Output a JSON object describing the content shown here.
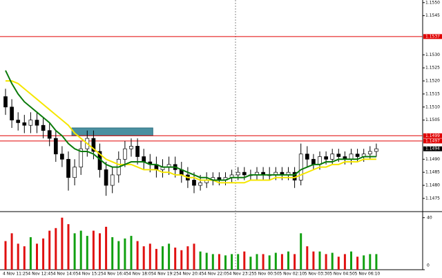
{
  "chart_data": {
    "type": "candlestick",
    "categories": [
      "4 Nov 11:25",
      null,
      null,
      null,
      "4 Nov 12:45",
      null,
      null,
      null,
      "4 Nov 14:05",
      null,
      null,
      null,
      "4 Nov 15:25",
      null,
      null,
      null,
      "4 Nov 16:45",
      null,
      null,
      null,
      "4 Nov 18:05",
      null,
      null,
      null,
      "4 Nov 19:25",
      null,
      null,
      null,
      "4 Nov 20:45",
      null,
      null,
      null,
      "4 Nov 22:05",
      null,
      null,
      null,
      "4 Nov 23:25",
      null,
      null,
      null,
      "5 Nov 00:50",
      null,
      null,
      null,
      "5 Nov 02:10",
      null,
      null,
      null,
      "5 Nov 03:30",
      null,
      null,
      null,
      "5 Nov 04:50",
      null,
      null,
      null,
      "5 Nov 06:10",
      null,
      null,
      null
    ],
    "open": [
      1.1514,
      1.151,
      1.1505,
      1.1504,
      1.1503,
      1.1505,
      1.1503,
      1.1501,
      1.1498,
      1.1492,
      1.149,
      1.1483,
      1.1487,
      1.1494,
      1.1498,
      1.1493,
      1.1486,
      1.148,
      1.1484,
      1.149,
      1.1494,
      1.1495,
      1.1491,
      1.1489,
      1.1488,
      1.1486,
      1.1487,
      1.1488,
      1.1486,
      1.1484,
      1.1482,
      1.148,
      1.1481,
      1.1482,
      1.1483,
      1.1482,
      1.1483,
      1.1484,
      1.1485,
      1.1484,
      1.1484,
      1.1485,
      1.1484,
      1.1484,
      1.1485,
      1.1484,
      1.1485,
      1.1482,
      1.1492,
      1.149,
      1.1488,
      1.1491,
      1.149,
      1.1492,
      1.1491,
      1.149,
      1.1492,
      1.1491,
      1.1492,
      1.1493
    ],
    "high": [
      1.1517,
      1.1513,
      1.1508,
      1.1507,
      1.1508,
      1.1508,
      1.1506,
      1.1504,
      1.1501,
      1.1495,
      1.1493,
      1.149,
      1.1497,
      1.1501,
      1.1501,
      1.1496,
      1.1489,
      1.1487,
      1.1493,
      1.1497,
      1.1498,
      1.1498,
      1.1494,
      1.1492,
      1.1491,
      1.149,
      1.1491,
      1.1491,
      1.1489,
      1.1487,
      1.1485,
      1.1484,
      1.1485,
      1.1485,
      1.1485,
      1.1485,
      1.1486,
      1.1487,
      1.1487,
      1.1486,
      1.1487,
      1.1487,
      1.1487,
      1.1487,
      1.1487,
      1.1487,
      1.1487,
      1.1496,
      1.1495,
      1.1492,
      1.1493,
      1.1493,
      1.1494,
      1.1494,
      1.1493,
      1.1494,
      1.1494,
      1.1494,
      1.1495,
      1.1496
    ],
    "low": [
      1.1507,
      1.1502,
      1.1501,
      1.15,
      1.15,
      1.15,
      1.1498,
      1.1495,
      1.1489,
      1.1487,
      1.1478,
      1.148,
      1.1484,
      1.1491,
      1.149,
      1.1483,
      1.1476,
      1.1477,
      1.1481,
      1.1487,
      1.1491,
      1.1488,
      1.1486,
      1.1485,
      1.1483,
      1.1483,
      1.1484,
      1.1483,
      1.1481,
      1.1479,
      1.1477,
      1.1478,
      1.1479,
      1.148,
      1.148,
      1.148,
      1.1481,
      1.1482,
      1.1482,
      1.1482,
      1.1482,
      1.1482,
      1.1482,
      1.1482,
      1.1482,
      1.1482,
      1.1479,
      1.148,
      1.1487,
      1.1486,
      1.1486,
      1.1488,
      1.1488,
      1.1489,
      1.1488,
      1.1488,
      1.1489,
      1.1489,
      1.149,
      1.1491
    ],
    "close": [
      1.151,
      1.1505,
      1.1504,
      1.1503,
      1.1505,
      1.1503,
      1.1501,
      1.1498,
      1.1492,
      1.149,
      1.1483,
      1.1487,
      1.1494,
      1.1498,
      1.1493,
      1.1486,
      1.148,
      1.1484,
      1.149,
      1.1494,
      1.1495,
      1.1491,
      1.1489,
      1.1488,
      1.1486,
      1.1487,
      1.1488,
      1.1486,
      1.1484,
      1.1482,
      1.148,
      1.1481,
      1.1482,
      1.1483,
      1.1482,
      1.1483,
      1.1484,
      1.1485,
      1.1484,
      1.1484,
      1.1485,
      1.1484,
      1.1484,
      1.1485,
      1.1484,
      1.1485,
      1.1482,
      1.1492,
      1.149,
      1.1488,
      1.1491,
      1.149,
      1.1492,
      1.1491,
      1.149,
      1.1492,
      1.1491,
      1.1492,
      1.1493,
      1.1494
    ],
    "series": [
      {
        "color": "#f5e600",
        "values": [
          1.152,
          1.152,
          1.1519,
          1.1517,
          1.1515,
          1.1513,
          1.1511,
          1.1509,
          1.1507,
          1.1505,
          1.1503,
          1.15,
          1.1498,
          1.1496,
          1.1494,
          1.1492,
          1.149,
          1.1489,
          1.1488,
          1.1488,
          1.1488,
          1.1487,
          1.1486,
          1.1486,
          1.1486,
          1.1485,
          1.1485,
          1.1484,
          1.1484,
          1.1483,
          1.1483,
          1.1482,
          1.1482,
          1.1482,
          1.1481,
          1.1481,
          1.1481,
          1.1481,
          1.1481,
          1.1482,
          1.1482,
          1.1482,
          1.1482,
          1.1483,
          1.1483,
          1.1483,
          1.1483,
          1.1484,
          1.1485,
          1.1486,
          1.1487,
          1.1487,
          1.1488,
          1.1488,
          1.1489,
          1.1489,
          1.1489,
          1.149,
          1.149,
          1.149
        ]
      },
      {
        "color": "#0a7a0a",
        "values": [
          1.1524,
          1.1519,
          1.1515,
          1.1512,
          1.151,
          1.1508,
          1.1506,
          1.1504,
          1.1501,
          1.1499,
          1.1496,
          1.1494,
          1.1493,
          1.1493,
          1.1492,
          1.149,
          1.1488,
          1.1487,
          1.1487,
          1.1488,
          1.1489,
          1.1489,
          1.1489,
          1.1488,
          1.1488,
          1.1487,
          1.1487,
          1.1487,
          1.1486,
          1.1485,
          1.1484,
          1.1483,
          1.1483,
          1.1482,
          1.1482,
          1.1482,
          1.1483,
          1.1483,
          1.1483,
          1.1484,
          1.1484,
          1.1484,
          1.1484,
          1.1484,
          1.1484,
          1.1484,
          1.1484,
          1.1486,
          1.1487,
          1.1488,
          1.1488,
          1.1489,
          1.1489,
          1.149,
          1.149,
          1.149,
          1.149,
          1.1491,
          1.1491,
          1.1491
        ]
      }
    ],
    "ylim": [
      1.1471,
      1.1551
    ],
    "yticks": [
      {
        "value": 1.155,
        "label": "1.1550"
      },
      {
        "value": 1.1545,
        "label": "1.1545"
      },
      {
        "value": 1.153,
        "label": "1.1530"
      },
      {
        "value": 1.1525,
        "label": "1.1525"
      },
      {
        "value": 1.152,
        "label": "1.1520"
      },
      {
        "value": 1.1515,
        "label": "1.1515"
      },
      {
        "value": 1.151,
        "label": "1.1510"
      },
      {
        "value": 1.1505,
        "label": "1.1505"
      },
      {
        "value": 1.149,
        "label": "1.1490"
      },
      {
        "value": 1.1485,
        "label": "1.1485"
      },
      {
        "value": 1.148,
        "label": "1.1480"
      },
      {
        "value": 1.1475,
        "label": "1.1475"
      }
    ],
    "levels": [
      {
        "value": 1.1537,
        "label": "1.1537"
      },
      {
        "value": 1.1499,
        "label": "1.1499"
      },
      {
        "value": 1.1497,
        "label": "1.1497"
      }
    ],
    "level_color": "#e00000",
    "last_price": {
      "value": 1.1494,
      "label": "1.1494"
    },
    "zone": {
      "low": 1.1499,
      "high": 1.1502,
      "color": "#4a8fa0"
    },
    "volume": {
      "values": [
        22,
        28,
        20,
        18,
        25,
        20,
        24,
        30,
        32,
        40,
        35,
        28,
        30,
        26,
        30,
        28,
        33,
        25,
        22,
        24,
        26,
        22,
        18,
        20,
        16,
        18,
        20,
        17,
        15,
        18,
        20,
        14,
        13,
        12,
        12,
        11,
        12,
        12,
        14,
        10,
        12,
        12,
        11,
        13,
        12,
        14,
        12,
        28,
        18,
        14,
        14,
        12,
        13,
        10,
        12,
        14,
        10,
        11,
        12,
        12
      ],
      "ylim": [
        0,
        42
      ],
      "yticks": [
        0,
        40
      ],
      "up_color": "#10a010",
      "down_color": "#e01010"
    }
  }
}
